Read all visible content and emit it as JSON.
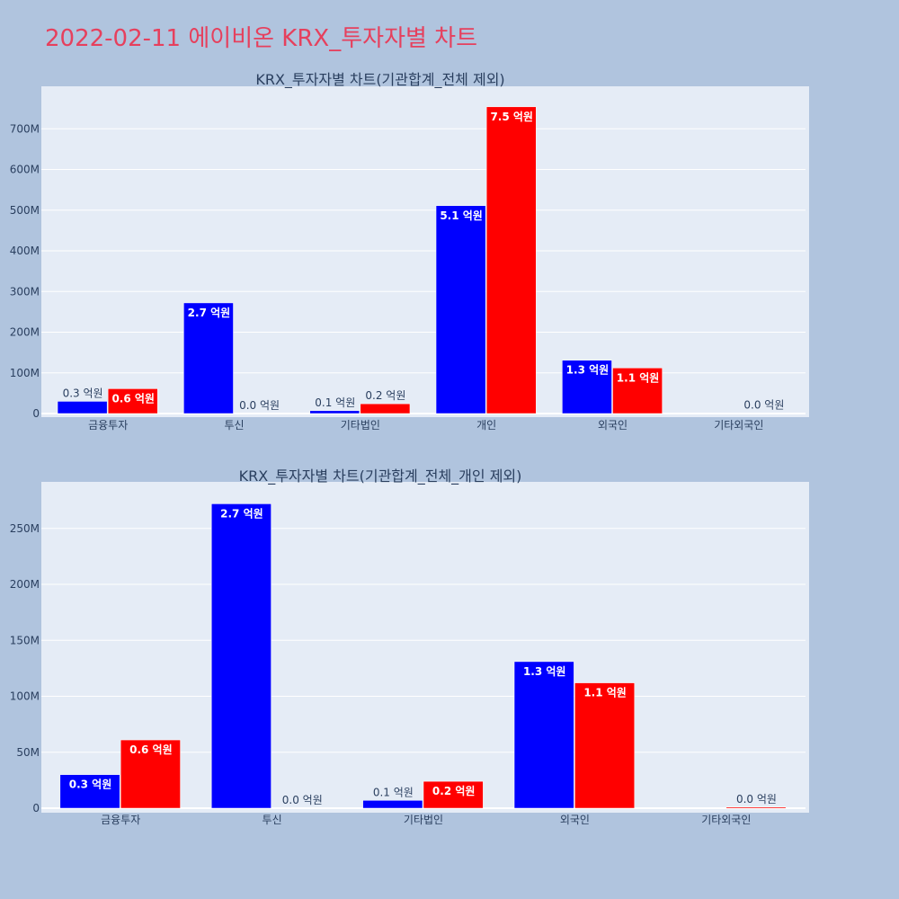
{
  "page": {
    "title": "2022-02-11 에이비온 KRX_투자자별 차트"
  },
  "colors": {
    "background": "#b0c4de",
    "plot_bg": "#e5ecf6",
    "grid": "#ffffff",
    "title": "#e6405d",
    "text": "#2a3f5f"
  },
  "chart_data": [
    {
      "type": "bar",
      "title": "KRX_투자자별 차트(기관합계_전체 제외)",
      "categories": [
        "금융투자",
        "투신",
        "기타법인",
        "개인",
        "외국인",
        "기타외국인"
      ],
      "series": [
        {
          "color": "#0000ff",
          "values": [
            30000000,
            272000000,
            7000000,
            511000000,
            131000000,
            0
          ],
          "labels": [
            "0.3 억원",
            "2.7 억원",
            "0.1 억원",
            "5.1 억원",
            "1.3 억원",
            ""
          ]
        },
        {
          "color": "#ff0000",
          "values": [
            61000000,
            0,
            24000000,
            754000000,
            112000000,
            1000000
          ],
          "labels": [
            "0.6 억원",
            "0.0 억원",
            "0.2 억원",
            "7.5 억원",
            "1.1 억원",
            "0.0 억원"
          ]
        }
      ],
      "ylim": [
        0,
        800000000
      ],
      "yticks": [
        0,
        100000000,
        200000000,
        300000000,
        400000000,
        500000000,
        600000000,
        700000000
      ],
      "ytick_labels": [
        "0",
        "100M",
        "200M",
        "300M",
        "400M",
        "500M",
        "600M",
        "700M"
      ],
      "grid": true
    },
    {
      "type": "bar",
      "title": "KRX_투자자별 차트(기관합계_전체_개인 제외)",
      "categories": [
        "금융투자",
        "투신",
        "기타법인",
        "외국인",
        "기타외국인"
      ],
      "series": [
        {
          "color": "#0000ff",
          "values": [
            30000000,
            272000000,
            7000000,
            131000000,
            0
          ],
          "labels": [
            "0.3 억원",
            "2.7 억원",
            "0.1 억원",
            "1.3 억원",
            ""
          ]
        },
        {
          "color": "#ff0000",
          "values": [
            61000000,
            0,
            24000000,
            112000000,
            1000000
          ],
          "labels": [
            "0.6 억원",
            "0.0 억원",
            "0.2 억원",
            "1.1 억원",
            "0.0 억원"
          ]
        }
      ],
      "ylim": [
        0,
        290000000
      ],
      "yticks": [
        0,
        50000000,
        100000000,
        150000000,
        200000000,
        250000000
      ],
      "ytick_labels": [
        "0",
        "50M",
        "100M",
        "150M",
        "200M",
        "250M"
      ],
      "grid": true
    }
  ]
}
